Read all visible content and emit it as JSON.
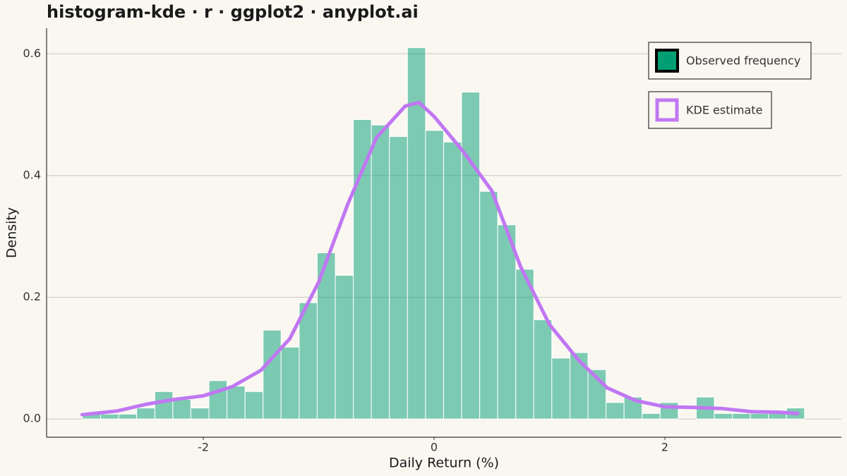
{
  "chart_data": {
    "type": "histogram",
    "title": "histogram-kde · r · ggplot2 · anyplot.ai",
    "x_label": "Daily Return (%)",
    "y_label": "Density",
    "bins": [
      -3.046,
      -2.89,
      -2.733,
      -2.577,
      -2.42,
      -2.264,
      -2.108,
      -1.951,
      -1.795,
      -1.638,
      -1.482,
      -1.326,
      -1.169,
      -1.013,
      -0.856,
      -0.7,
      -0.544,
      -0.387,
      -0.231,
      -0.074,
      0.082,
      0.238,
      0.395,
      0.551,
      0.708,
      0.864,
      1.02,
      1.177,
      1.333,
      1.49,
      1.646,
      1.802,
      1.959,
      2.115,
      2.272,
      2.428,
      2.584,
      2.741,
      2.897,
      3.054,
      3.21
    ],
    "series": [
      {
        "name": "Observed frequency",
        "type": "histogram",
        "color": "#009E73",
        "values": [
          0.008,
          0.008,
          0.008,
          0.018,
          0.045,
          0.032,
          0.018,
          0.063,
          0.054,
          0.045,
          0.146,
          0.118,
          0.191,
          0.273,
          0.236,
          0.492,
          0.483,
          0.464,
          0.61,
          0.474,
          0.455,
          0.537,
          0.374,
          0.319,
          0.246,
          0.163,
          0.1,
          0.109,
          0.081,
          0.027,
          0.036,
          0.009,
          0.027,
          0,
          0.036,
          0.009,
          0.009,
          0.009,
          0.009,
          0.018
        ]
      },
      {
        "name": "KDE estimate",
        "type": "line",
        "color": "#C077F2",
        "x": [
          -3.05,
          -2.75,
          -2.5,
          -2.25,
          -2.0,
          -1.75,
          -1.5,
          -1.25,
          -1.0,
          -0.75,
          -0.5,
          -0.25,
          -0.13,
          0.0,
          0.25,
          0.5,
          0.75,
          1.0,
          1.25,
          1.5,
          1.75,
          2.0,
          2.25,
          2.5,
          2.75,
          3.0,
          3.15
        ],
        "values": [
          0.007,
          0.013,
          0.024,
          0.032,
          0.038,
          0.053,
          0.08,
          0.132,
          0.225,
          0.352,
          0.462,
          0.514,
          0.52,
          0.497,
          0.44,
          0.375,
          0.25,
          0.155,
          0.097,
          0.051,
          0.03,
          0.02,
          0.019,
          0.017,
          0.012,
          0.011,
          0.009
        ]
      }
    ],
    "xlim": [
      -3.358,
      3.529
    ],
    "ylim": [
      -0.03,
      0.642
    ],
    "xticks": [
      -2,
      0,
      2
    ],
    "yticks": [
      {
        "value": 0,
        "label": "0.0"
      },
      0.2,
      0.4,
      0.6
    ],
    "grid": true
  }
}
